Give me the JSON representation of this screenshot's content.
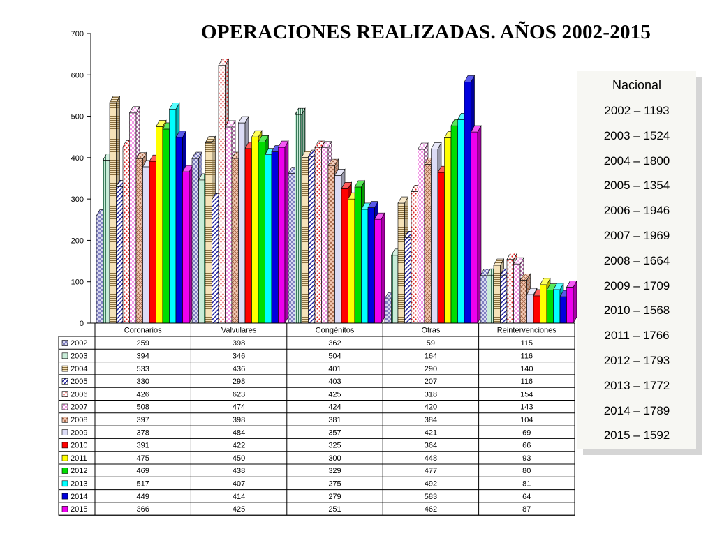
{
  "title": "OPERACIONES REALIZADAS. AÑOS 2002-2015",
  "nacional": {
    "title": "Nacional",
    "items": [
      "2002 – 1193",
      "2003 – 1524",
      "2004 – 1800",
      "2005 – 1354",
      "2006 – 1946",
      "2007 – 1969",
      "2008 – 1664",
      "2009 – 1709",
      "2010 – 1568",
      "2011 – 1766",
      "2012 – 1793",
      "2013 – 1772",
      "2014 – 1789",
      "2015 – 1592"
    ]
  },
  "chart_data": {
    "type": "bar",
    "title": "OPERACIONES REALIZADAS. AÑOS 2002-2015",
    "categories": [
      "Coronarios",
      "Valvulares",
      "Congénitos",
      "Otras",
      "Reintervenciones"
    ],
    "ylim": [
      0,
      700
    ],
    "yticks": [
      0,
      100,
      200,
      300,
      400,
      500,
      600,
      700
    ],
    "grid": false,
    "legend": "data table below chart",
    "series": [
      {
        "name": "2002",
        "color": "#d8d8f0",
        "pattern": "checker",
        "values": [
          259,
          398,
          362,
          59,
          115
        ]
      },
      {
        "name": "2003",
        "color": "#c8ecd8",
        "pattern": "vlines",
        "values": [
          394,
          346,
          504,
          164,
          116
        ]
      },
      {
        "name": "2004",
        "color": "#f5e2b8",
        "pattern": "hlines",
        "values": [
          533,
          436,
          401,
          290,
          140
        ]
      },
      {
        "name": "2005",
        "color": "#ffffff",
        "pattern": "diag-blue",
        "values": [
          330,
          298,
          403,
          207,
          116
        ]
      },
      {
        "name": "2006",
        "color": "#ffffff",
        "pattern": "dots-red",
        "values": [
          426,
          623,
          425,
          318,
          154
        ]
      },
      {
        "name": "2007",
        "color": "#f29ae6",
        "pattern": "checker-pink",
        "values": [
          508,
          474,
          424,
          420,
          143
        ]
      },
      {
        "name": "2008",
        "color": "#f4c9b4",
        "pattern": "cross",
        "values": [
          397,
          398,
          381,
          384,
          104
        ]
      },
      {
        "name": "2009",
        "color": "#dcdcf6",
        "pattern": "none",
        "values": [
          378,
          484,
          357,
          421,
          69
        ]
      },
      {
        "name": "2010",
        "color": "#ff0000",
        "pattern": "none",
        "values": [
          391,
          422,
          325,
          364,
          66
        ]
      },
      {
        "name": "2011",
        "color": "#ffff00",
        "pattern": "none",
        "values": [
          475,
          450,
          300,
          448,
          93
        ]
      },
      {
        "name": "2012",
        "color": "#00dd00",
        "pattern": "none",
        "values": [
          469,
          438,
          329,
          477,
          80
        ]
      },
      {
        "name": "2013",
        "color": "#00ffff",
        "pattern": "none",
        "values": [
          517,
          407,
          275,
          492,
          81
        ]
      },
      {
        "name": "2014",
        "color": "#0000dd",
        "pattern": "none",
        "values": [
          449,
          414,
          279,
          583,
          64
        ]
      },
      {
        "name": "2015",
        "color": "#ee00ee",
        "pattern": "none",
        "values": [
          366,
          425,
          251,
          462,
          87
        ]
      }
    ]
  }
}
